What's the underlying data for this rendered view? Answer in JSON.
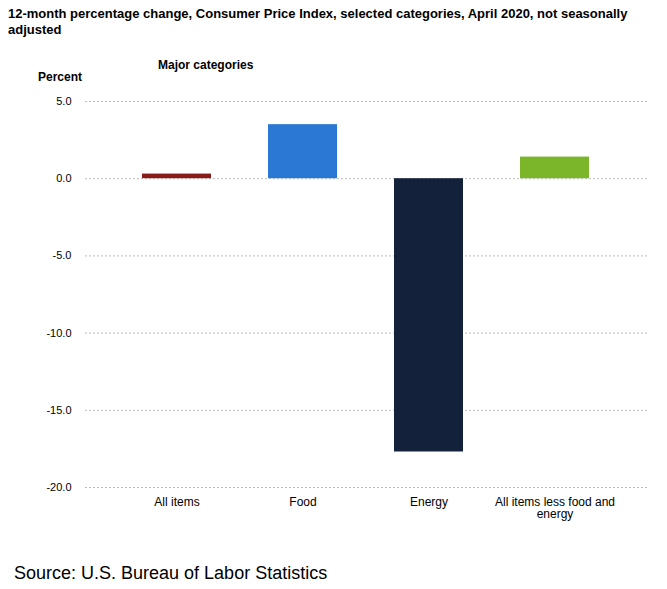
{
  "chart_data": {
    "type": "bar",
    "title": "12-month percentage change, Consumer Price Index, selected categories, April 2020, not seasonally adjusted",
    "subtitle": "Major categories",
    "ylabel": "Percent",
    "source": "Source: U.S. Bureau of Labor Statistics",
    "categories": [
      "All items",
      "Food",
      "Energy",
      "All items less food and energy"
    ],
    "values": [
      0.3,
      3.5,
      -17.7,
      1.4
    ],
    "colors": [
      "#8b1a1a",
      "#2a77d4",
      "#14213a",
      "#7ab52a"
    ],
    "ylim": [
      -20,
      5
    ],
    "yticks": [
      {
        "value": -20,
        "label": "-20.0"
      },
      {
        "value": -15,
        "label": "-15.0"
      },
      {
        "value": -10,
        "label": "-10.0"
      },
      {
        "value": -5,
        "label": "-5.0"
      },
      {
        "value": 0,
        "label": "0.0"
      },
      {
        "value": 5,
        "label": "5.0"
      }
    ],
    "grid": true
  }
}
